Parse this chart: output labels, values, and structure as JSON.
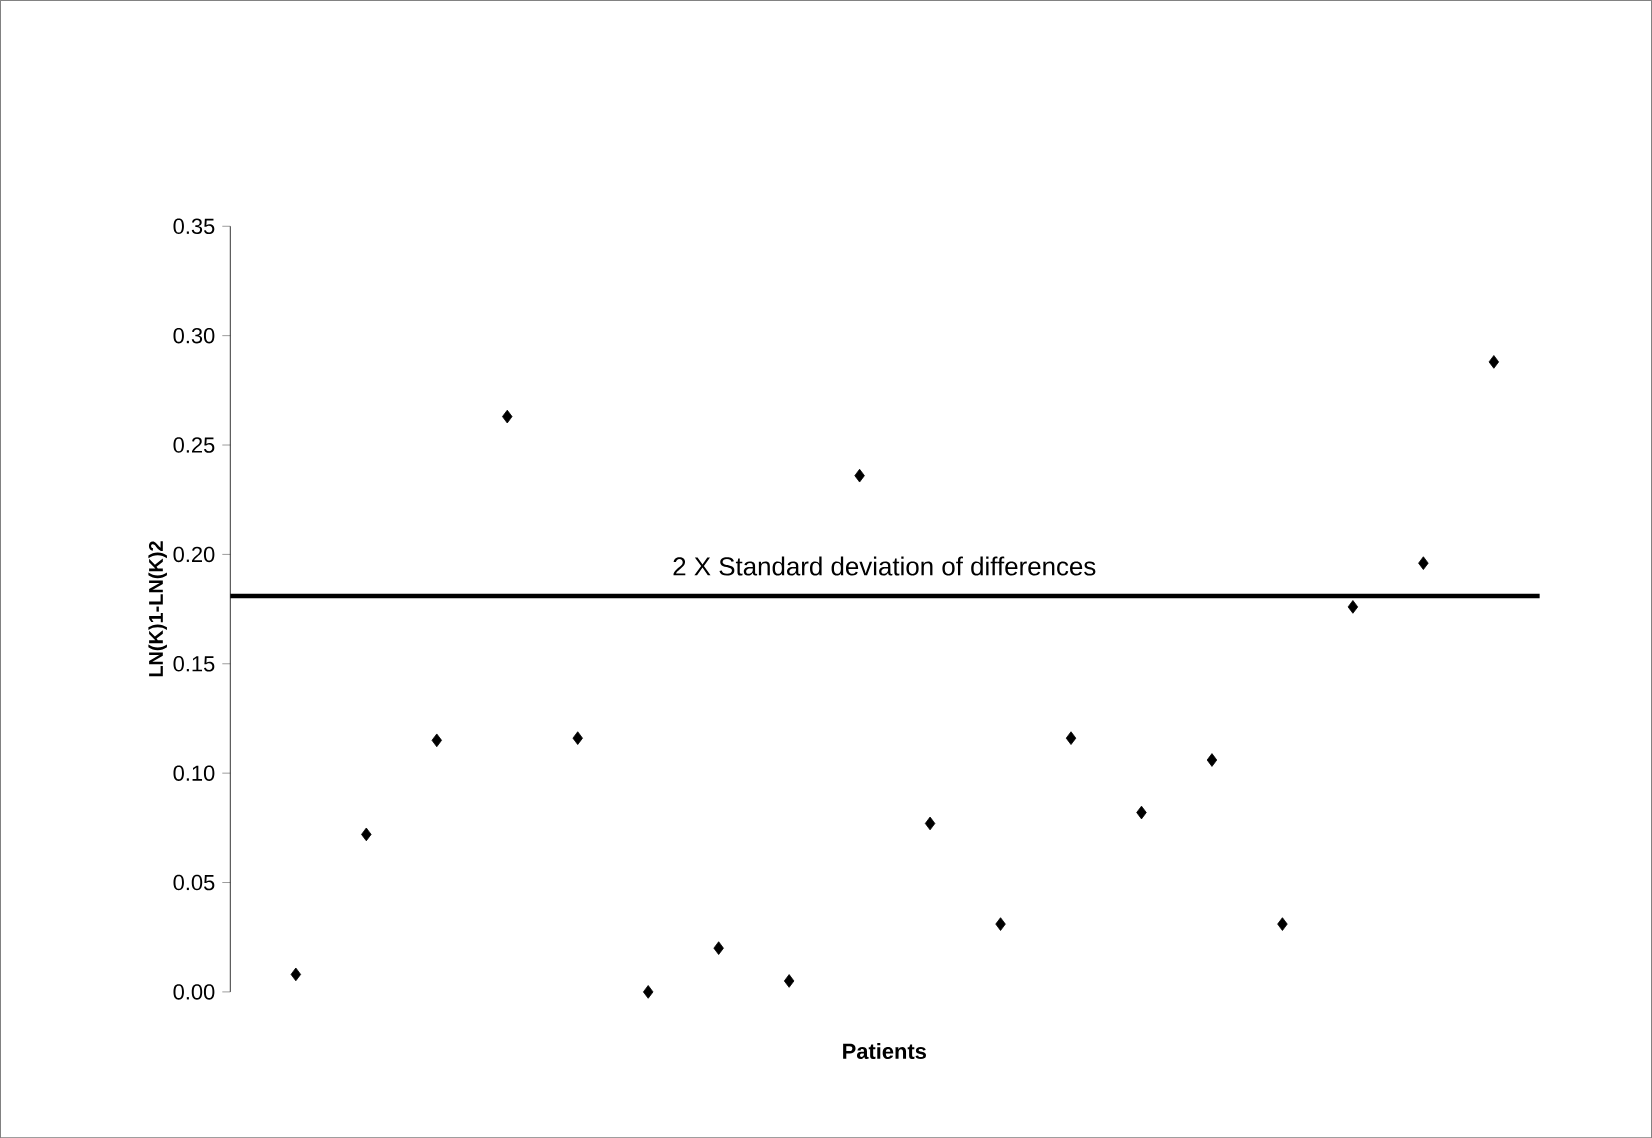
{
  "chart_data": {
    "type": "scatter",
    "xlabel": "Patients",
    "ylabel": "LN(K)1-LN(K)2",
    "categories": [
      null,
      null,
      null,
      null,
      null,
      null,
      null,
      null,
      null,
      null,
      null,
      null,
      null,
      null,
      null,
      null,
      null,
      null
    ],
    "values": [
      0.008,
      0.072,
      0.115,
      0.263,
      0.116,
      0.0,
      0.02,
      0.005,
      0.236,
      0.077,
      0.031,
      0.116,
      0.082,
      0.106,
      0.031,
      0.176,
      0.196,
      0.288
    ],
    "color": "#000000",
    "marker": "diamond",
    "ylim": [
      0,
      0.35
    ],
    "yticks": [
      {
        "value": 0,
        "label": "0.00"
      },
      {
        "value": 0.05,
        "label": "0.05"
      },
      {
        "value": 0.1,
        "label": "0.10"
      },
      {
        "value": 0.15,
        "label": "0.15"
      },
      {
        "value": 0.2,
        "label": "0.20"
      },
      {
        "value": 0.25,
        "label": "0.25"
      },
      {
        "value": 0.3,
        "label": "0.30"
      },
      {
        "value": 0.35,
        "label": "0.35"
      }
    ],
    "ref_lines": [
      {
        "axis": "y",
        "value": 0.181,
        "label": "2 X Standard deviation of differences",
        "color": "#000000"
      }
    ]
  }
}
